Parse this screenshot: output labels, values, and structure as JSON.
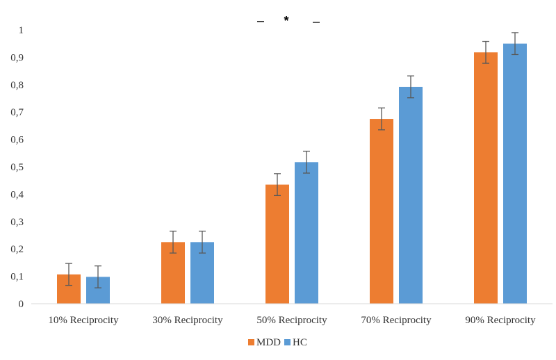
{
  "chart_data": {
    "type": "bar",
    "title": "",
    "xlabel": "",
    "ylabel": "",
    "categories": [
      "10% Reciprocity",
      "30% Reciprocity",
      "50% Reciprocity",
      "70% Reciprocity",
      "90% Reciprocity"
    ],
    "series": [
      {
        "name": "MDD",
        "color": "#ED7D31",
        "values": [
          0.107,
          0.225,
          0.435,
          0.675,
          0.918
        ],
        "errors": [
          0.04,
          0.04,
          0.04,
          0.04,
          0.04
        ]
      },
      {
        "name": "HC",
        "color": "#5B9BD5",
        "values": [
          0.098,
          0.225,
          0.517,
          0.792,
          0.95
        ],
        "errors": [
          0.04,
          0.04,
          0.04,
          0.04,
          0.04
        ]
      }
    ],
    "ylim": [
      0,
      1
    ],
    "yticks": [
      0,
      0.1,
      0.2,
      0.3,
      0.4,
      0.5,
      0.6,
      0.7,
      0.8,
      0.9,
      1
    ],
    "ytick_labels": [
      "0",
      "0,1",
      "0,2",
      "0,3",
      "0,4",
      "0,5",
      "0,6",
      "0,7",
      "0,8",
      "0,9",
      "1"
    ],
    "grid": false,
    "legend": "bottom",
    "annotations": [
      {
        "category_index": 2,
        "text": "*",
        "y": 1.03
      },
      {
        "category_index": 3,
        "text": "**",
        "y": 1.2
      }
    ]
  }
}
